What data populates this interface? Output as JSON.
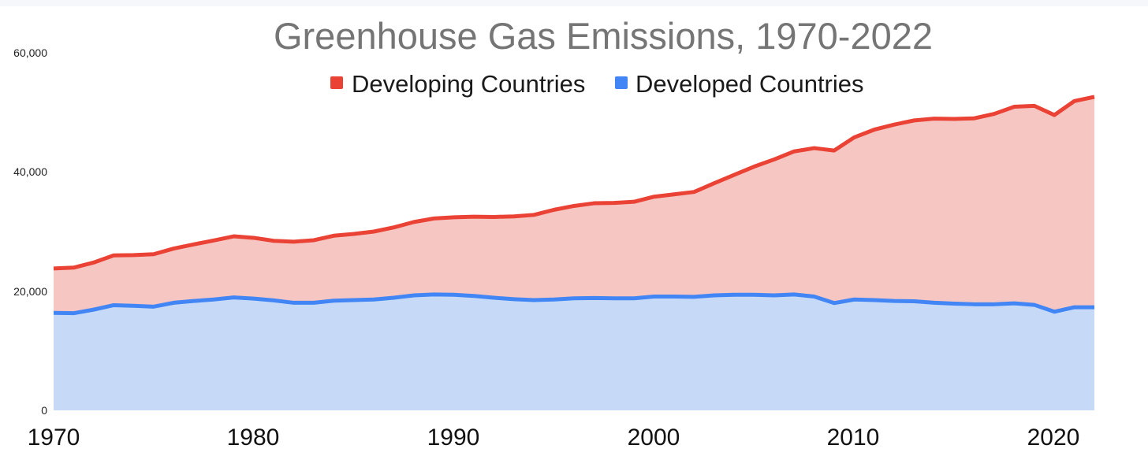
{
  "chart_data": {
    "type": "area",
    "title": "Greenhouse Gas Emissions, 1970-2022",
    "stacked": true,
    "x": [
      1970,
      1971,
      1972,
      1973,
      1974,
      1975,
      1976,
      1977,
      1978,
      1979,
      1980,
      1981,
      1982,
      1983,
      1984,
      1985,
      1986,
      1987,
      1988,
      1989,
      1990,
      1991,
      1992,
      1993,
      1994,
      1995,
      1996,
      1997,
      1998,
      1999,
      2000,
      2001,
      2002,
      2003,
      2004,
      2005,
      2006,
      2007,
      2008,
      2009,
      2010,
      2011,
      2012,
      2013,
      2014,
      2015,
      2016,
      2017,
      2018,
      2019,
      2020,
      2021,
      2022
    ],
    "xticks": [
      "1970",
      "1980",
      "1990",
      "2000",
      "2010",
      "2020"
    ],
    "yticks": [
      "0",
      "20,000",
      "40,000",
      "60,000"
    ],
    "ylim": [
      0,
      60000
    ],
    "xlim": [
      1970,
      2023.3
    ],
    "grid": false,
    "legend_position": "top-center",
    "xlabel": "",
    "ylabel": "",
    "series": [
      {
        "name": "Developed Countries",
        "color": "#4285f4",
        "fill": "#c6daf8",
        "values": [
          16350,
          16300,
          16900,
          17650,
          17550,
          17400,
          18050,
          18350,
          18600,
          18950,
          18750,
          18450,
          18050,
          18050,
          18400,
          18500,
          18600,
          18900,
          19300,
          19450,
          19400,
          19200,
          18900,
          18650,
          18500,
          18600,
          18800,
          18850,
          18800,
          18800,
          19100,
          19100,
          19050,
          19300,
          19400,
          19400,
          19300,
          19450,
          19100,
          18000,
          18600,
          18500,
          18350,
          18300,
          18050,
          17900,
          17800,
          17800,
          17950,
          17700,
          16550,
          17300,
          17300
        ]
      },
      {
        "name": "Developing Countries",
        "color": "#ea4335",
        "fill": "#f6c6c3",
        "values": [
          7450,
          7650,
          7900,
          8350,
          8500,
          8800,
          9100,
          9500,
          9900,
          10250,
          10200,
          10000,
          10250,
          10500,
          10900,
          11100,
          11400,
          11800,
          12300,
          12750,
          13000,
          13300,
          13550,
          13900,
          14300,
          15050,
          15500,
          15900,
          16000,
          16200,
          16750,
          17150,
          17600,
          18800,
          20100,
          21500,
          22800,
          24000,
          24900,
          25600,
          27200,
          28600,
          29600,
          30350,
          30900,
          31000,
          31200,
          31950,
          33000,
          33400,
          33000,
          34600,
          35300
        ]
      }
    ]
  }
}
